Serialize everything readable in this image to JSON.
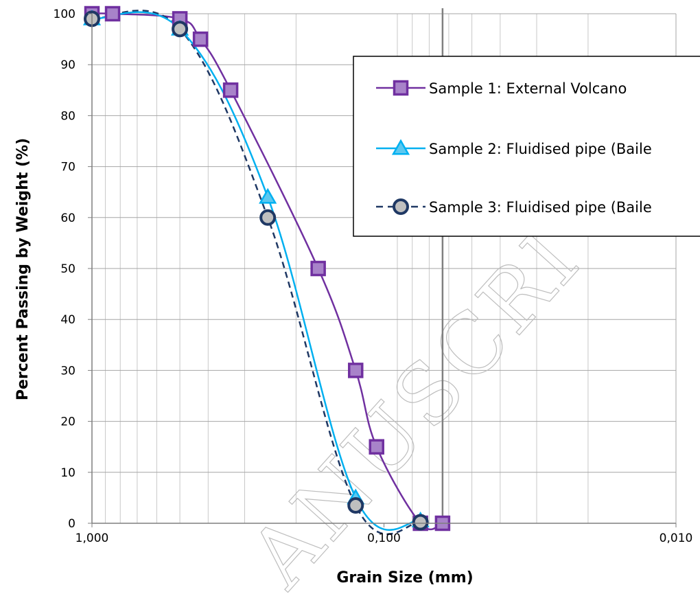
{
  "chart_data": {
    "type": "line",
    "title": "",
    "xlabel": "Grain Size (mm)",
    "ylabel": "Percent Passing by Weight (%)",
    "x_scale": "log",
    "x_reversed": true,
    "xlim": [
      1.0,
      0.01
    ],
    "ylim": [
      0,
      100
    ],
    "x_ticks": [
      {
        "value": 1.0,
        "label": "1,000"
      },
      {
        "value": 0.1,
        "label": "0,100"
      },
      {
        "value": 0.01,
        "label": "0,010"
      }
    ],
    "y_ticks": [
      0,
      10,
      20,
      30,
      40,
      50,
      60,
      70,
      80,
      90,
      100
    ],
    "grid": true,
    "legend_position": "top-right",
    "series": [
      {
        "name": "Sample 1: External Volcano",
        "color": "#7030a0",
        "marker": "square",
        "marker_fill": "#a883c9",
        "dash": false,
        "x": [
          1.0,
          0.85,
          0.5,
          0.425,
          0.335,
          0.168,
          0.125,
          0.106,
          0.075,
          0.063
        ],
        "y": [
          100,
          100,
          99,
          95,
          85,
          50,
          30,
          15,
          0,
          0
        ]
      },
      {
        "name": "Sample 2: Fluidised pipe (Baile",
        "color": "#00b0f0",
        "marker": "triangle",
        "marker_fill": "#5cc8f0",
        "dash": false,
        "x": [
          1.0,
          0.5,
          0.25,
          0.125,
          0.075
        ],
        "y": [
          99,
          97,
          64,
          5,
          0.5
        ]
      },
      {
        "name": "Sample 3: Fluidised pipe (Baile",
        "color": "#1f3864",
        "marker": "circle",
        "marker_fill": "#bfbfbf",
        "dash": true,
        "x": [
          1.0,
          0.5,
          0.25,
          0.125,
          0.075
        ],
        "y": [
          99,
          97,
          60,
          3.5,
          0.2
        ]
      }
    ],
    "reference_line_x": 0.063,
    "watermark": "ANUSCRI"
  }
}
